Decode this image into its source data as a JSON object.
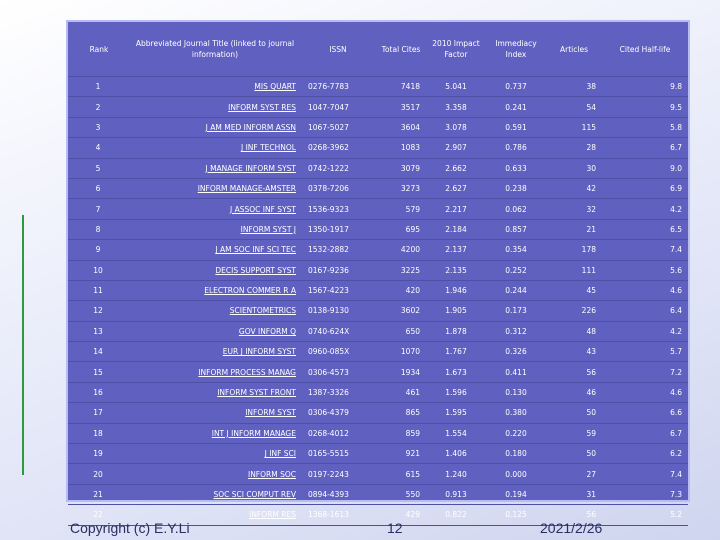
{
  "header": {
    "rank": "Rank",
    "title": "Abbreviated Journal Title (linked to journal information)",
    "issn": "ISSN",
    "total_cites": "Total Cites",
    "impact_factor": "2010 Impact Factor",
    "immediacy": "Immediacy Index",
    "articles": "Articles",
    "half_life": "Cited Half-life"
  },
  "rows": [
    {
      "rank": "1",
      "title": "MIS QUART",
      "issn": "0276-7783",
      "cites": "7418",
      "if": "5.041",
      "imm": "0.737",
      "art": "38",
      "hl": "9.8"
    },
    {
      "rank": "2",
      "title": "INFORM SYST RES",
      "issn": "1047-7047",
      "cites": "3517",
      "if": "3.358",
      "imm": "0.241",
      "art": "54",
      "hl": "9.5"
    },
    {
      "rank": "3",
      "title": "J AM MED INFORM ASSN",
      "issn": "1067-5027",
      "cites": "3604",
      "if": "3.078",
      "imm": "0.591",
      "art": "115",
      "hl": "5.8"
    },
    {
      "rank": "4",
      "title": "J INF TECHNOL",
      "issn": "0268-3962",
      "cites": "1083",
      "if": "2.907",
      "imm": "0.786",
      "art": "28",
      "hl": "6.7"
    },
    {
      "rank": "5",
      "title": "J MANAGE INFORM SYST",
      "issn": "0742-1222",
      "cites": "3079",
      "if": "2.662",
      "imm": "0.633",
      "art": "30",
      "hl": "9.0"
    },
    {
      "rank": "6",
      "title": "INFORM MANAGE-AMSTER",
      "issn": "0378-7206",
      "cites": "3273",
      "if": "2.627",
      "imm": "0.238",
      "art": "42",
      "hl": "6.9"
    },
    {
      "rank": "7",
      "title": "J ASSOC INF SYST",
      "issn": "1536-9323",
      "cites": "579",
      "if": "2.217",
      "imm": "0.062",
      "art": "32",
      "hl": "4.2"
    },
    {
      "rank": "8",
      "title": "INFORM SYST J",
      "issn": "1350-1917",
      "cites": "695",
      "if": "2.184",
      "imm": "0.857",
      "art": "21",
      "hl": "6.5"
    },
    {
      "rank": "9",
      "title": "J AM SOC INF SCI TEC",
      "issn": "1532-2882",
      "cites": "4200",
      "if": "2.137",
      "imm": "0.354",
      "art": "178",
      "hl": "7.4"
    },
    {
      "rank": "10",
      "title": "DECIS SUPPORT SYST",
      "issn": "0167-9236",
      "cites": "3225",
      "if": "2.135",
      "imm": "0.252",
      "art": "111",
      "hl": "5.6"
    },
    {
      "rank": "11",
      "title": "ELECTRON COMMER R A",
      "issn": "1567-4223",
      "cites": "420",
      "if": "1.946",
      "imm": "0.244",
      "art": "45",
      "hl": "4.6"
    },
    {
      "rank": "12",
      "title": "SCIENTOMETRICS",
      "issn": "0138-9130",
      "cites": "3602",
      "if": "1.905",
      "imm": "0.173",
      "art": "226",
      "hl": "6.4"
    },
    {
      "rank": "13",
      "title": "GOV INFORM Q",
      "issn": "0740-624X",
      "cites": "650",
      "if": "1.878",
      "imm": "0.312",
      "art": "48",
      "hl": "4.2"
    },
    {
      "rank": "14",
      "title": "EUR J INFORM SYST",
      "issn": "0960-085X",
      "cites": "1070",
      "if": "1.767",
      "imm": "0.326",
      "art": "43",
      "hl": "5.7"
    },
    {
      "rank": "15",
      "title": "INFORM PROCESS MANAG",
      "issn": "0306-4573",
      "cites": "1934",
      "if": "1.673",
      "imm": "0.411",
      "art": "56",
      "hl": "7.2"
    },
    {
      "rank": "16",
      "title": "INFORM SYST FRONT",
      "issn": "1387-3326",
      "cites": "461",
      "if": "1.596",
      "imm": "0.130",
      "art": "46",
      "hl": "4.6"
    },
    {
      "rank": "17",
      "title": "INFORM SYST",
      "issn": "0306-4379",
      "cites": "865",
      "if": "1.595",
      "imm": "0.380",
      "art": "50",
      "hl": "6.6"
    },
    {
      "rank": "18",
      "title": "INT J INFORM MANAGE",
      "issn": "0268-4012",
      "cites": "859",
      "if": "1.554",
      "imm": "0.220",
      "art": "59",
      "hl": "6.7"
    },
    {
      "rank": "19",
      "title": "J INF SCI",
      "issn": "0165-5515",
      "cites": "921",
      "if": "1.406",
      "imm": "0.180",
      "art": "50",
      "hl": "6.2"
    },
    {
      "rank": "20",
      "title": "INFORM SOC",
      "issn": "0197-2243",
      "cites": "615",
      "if": "1.240",
      "imm": "0.000",
      "art": "27",
      "hl": "7.4"
    },
    {
      "rank": "21",
      "title": "SOC SCI COMPUT REV",
      "issn": "0894-4393",
      "cites": "550",
      "if": "0.913",
      "imm": "0.194",
      "art": "31",
      "hl": "7.3"
    },
    {
      "rank": "22",
      "title": "INFORM RES",
      "issn": "1368-1613",
      "cites": "429",
      "if": "0.822",
      "imm": "0.125",
      "art": "56",
      "hl": "5.2"
    }
  ],
  "footer": {
    "copyright": "Copyright (c) E.Y.Li",
    "page": "12",
    "date": "2021/2/26"
  }
}
